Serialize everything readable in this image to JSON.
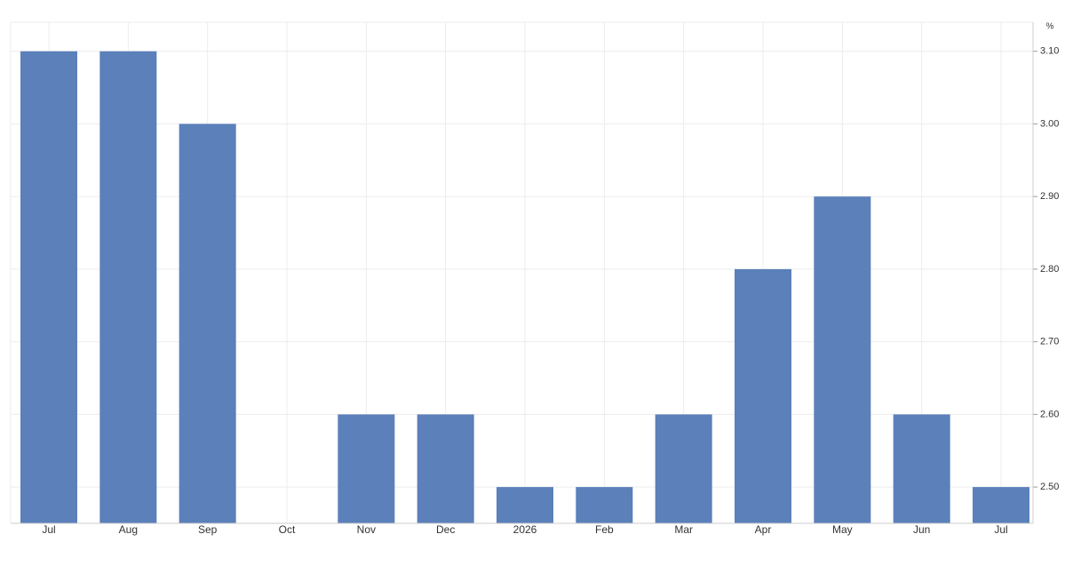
{
  "chart_data": {
    "type": "bar",
    "y_unit": "%",
    "categories": [
      "Jul",
      "Aug",
      "Sep",
      "Oct",
      "Nov",
      "Dec",
      "2026",
      "Feb",
      "Mar",
      "Apr",
      "May",
      "Jun",
      "Jul"
    ],
    "values": [
      3.1,
      3.1,
      3.0,
      null,
      2.6,
      2.6,
      2.5,
      2.5,
      2.6,
      2.8,
      2.9,
      2.6,
      2.5
    ],
    "color": "#5b80ba",
    "ylim": [
      2.45,
      3.14
    ],
    "yticks": [
      {
        "value": 2.5,
        "label": "2.50"
      },
      {
        "value": 2.6,
        "label": "2.60"
      },
      {
        "value": 2.7,
        "label": "2.70"
      },
      {
        "value": 2.8,
        "label": "2.80"
      },
      {
        "value": 2.9,
        "label": "2.90"
      },
      {
        "value": 3.0,
        "label": "3.00"
      },
      {
        "value": 3.1,
        "label": "3.10"
      }
    ],
    "grid": true
  }
}
